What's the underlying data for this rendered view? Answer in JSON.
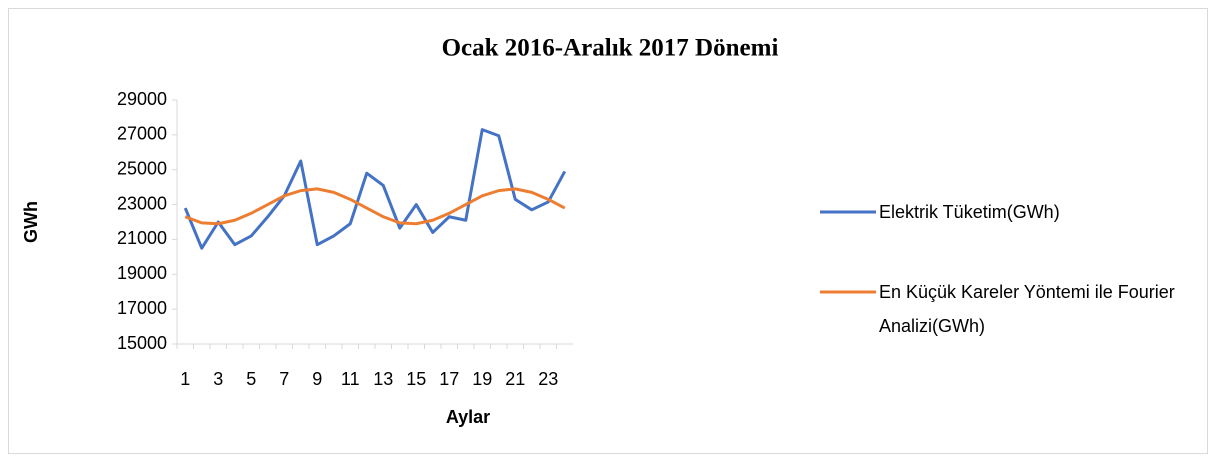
{
  "chart_data": {
    "type": "line",
    "title": "Ocak 2016-Aralık 2017 Dönemi",
    "x_label": "Aylar",
    "y_label": "GWh",
    "categories": [
      1,
      null,
      3,
      null,
      5,
      null,
      7,
      null,
      9,
      null,
      11,
      null,
      13,
      null,
      15,
      null,
      17,
      null,
      19,
      null,
      21,
      null,
      23,
      null
    ],
    "series": [
      {
        "name": "Elektrik Tüketim(GWh)",
        "color": "#4472c4",
        "values": [
          22800,
          20500,
          22000,
          20700,
          21200,
          22300,
          23500,
          25500,
          20700,
          21200,
          21900,
          24800,
          24100,
          21650,
          23000,
          21400,
          22300,
          22100,
          27300,
          26950,
          23300,
          22700,
          23150,
          24900
        ]
      },
      {
        "name": "En Küçük Kareler Yöntemi ile Fourier Analizi(GWh)",
        "color": "#ed7d31",
        "values": [
          22300,
          21950,
          21900,
          22100,
          22500,
          23000,
          23500,
          23800,
          23900,
          23700,
          23300,
          22800,
          22300,
          21950,
          21900,
          22100,
          22500,
          23000,
          23500,
          23800,
          23900,
          23700,
          23300,
          22800
        ]
      }
    ],
    "ylim": [
      15000,
      29000
    ],
    "yticks": [
      15000,
      17000,
      19000,
      21000,
      23000,
      25000,
      27000,
      29000
    ],
    "grid": false,
    "legend": "right"
  }
}
